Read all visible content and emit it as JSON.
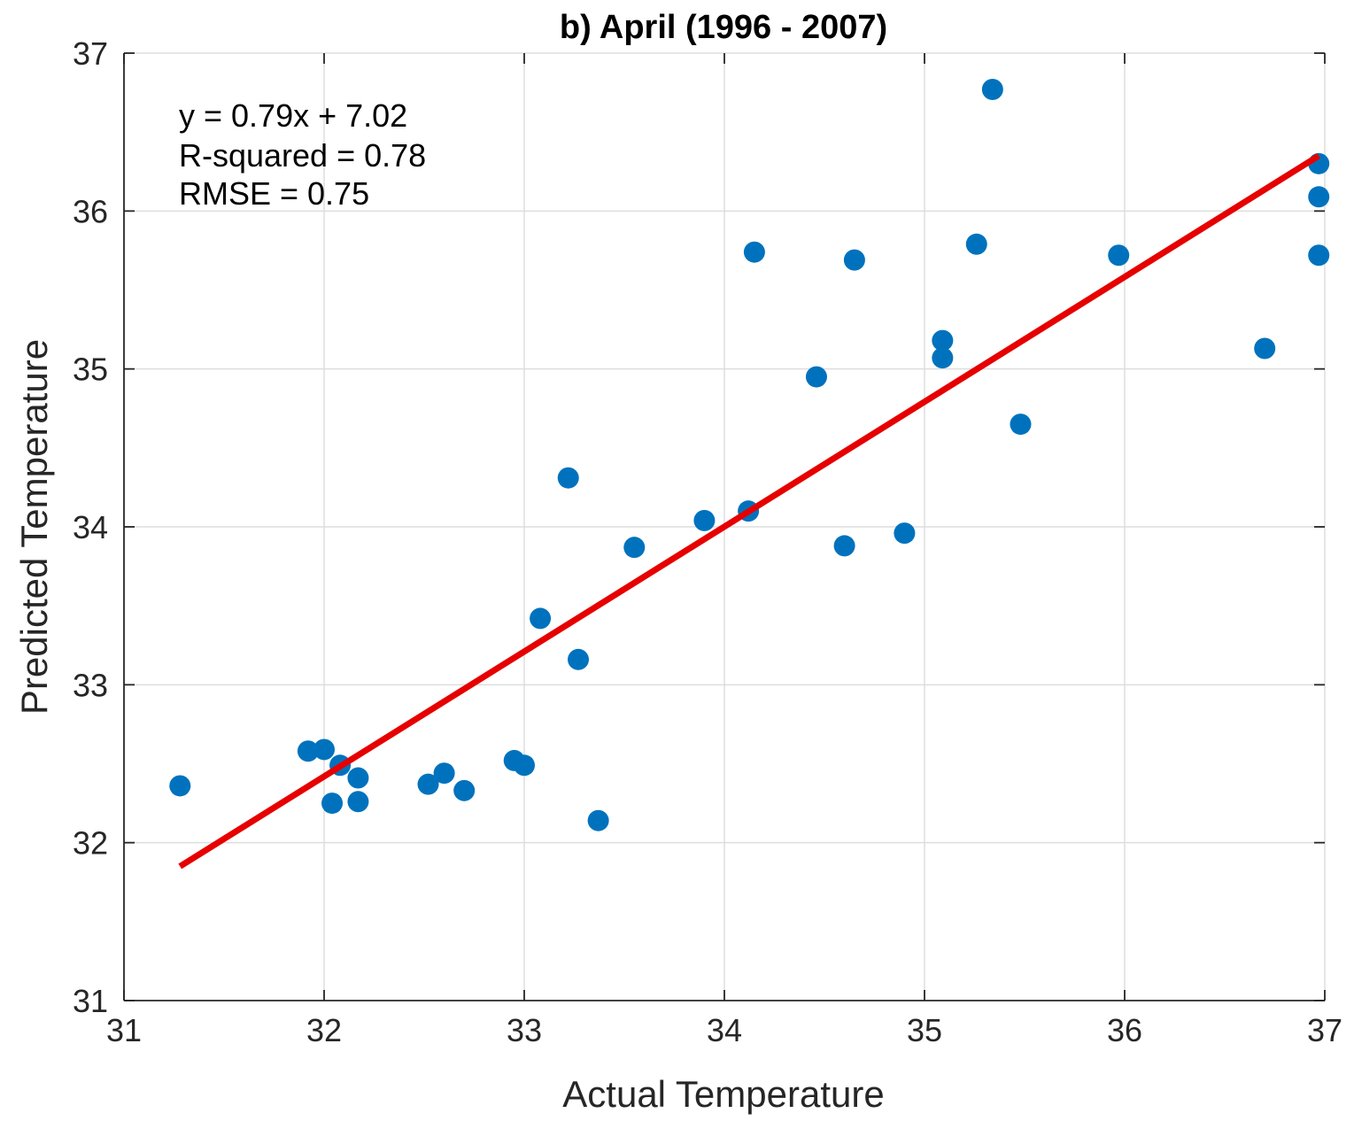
{
  "chart_data": {
    "type": "scatter",
    "title": "b) April (1996 - 2007)",
    "xlabel": "Actual Temperature",
    "ylabel": "Predicted Temperature",
    "xlim": [
      31,
      37
    ],
    "ylim": [
      31,
      37
    ],
    "xticks": [
      31,
      32,
      33,
      34,
      35,
      36,
      37
    ],
    "yticks": [
      31,
      32,
      33,
      34,
      35,
      36,
      37
    ],
    "grid": true,
    "annotations": [
      "y = 0.79x + 7.02",
      "R-squared = 0.78",
      "RMSE = 0.75"
    ],
    "colors": {
      "points": "#0072BD",
      "fit_line": "#E60000"
    },
    "series": [
      {
        "name": "observations",
        "type": "scatter",
        "x": [
          31.28,
          31.92,
          32.0,
          32.08,
          32.04,
          32.17,
          32.17,
          32.52,
          32.6,
          32.7,
          32.95,
          33.0,
          33.08,
          33.22,
          33.27,
          33.37,
          33.55,
          33.9,
          34.12,
          34.15,
          34.46,
          34.6,
          34.65,
          34.9,
          35.09,
          35.09,
          35.26,
          35.34,
          35.48,
          35.97,
          36.7,
          36.97,
          36.97,
          36.97
        ],
        "y": [
          32.36,
          32.58,
          32.59,
          32.49,
          32.25,
          32.41,
          32.26,
          32.37,
          32.44,
          32.33,
          32.52,
          32.49,
          33.42,
          34.31,
          33.16,
          32.14,
          33.87,
          34.04,
          34.1,
          35.74,
          34.95,
          33.88,
          35.69,
          33.96,
          35.07,
          35.18,
          35.79,
          36.77,
          34.65,
          35.72,
          35.13,
          36.3,
          36.09,
          35.72
        ]
      },
      {
        "name": "linear fit",
        "type": "line",
        "x": [
          31.28,
          36.97
        ],
        "y": [
          31.85,
          36.35
        ]
      }
    ]
  }
}
